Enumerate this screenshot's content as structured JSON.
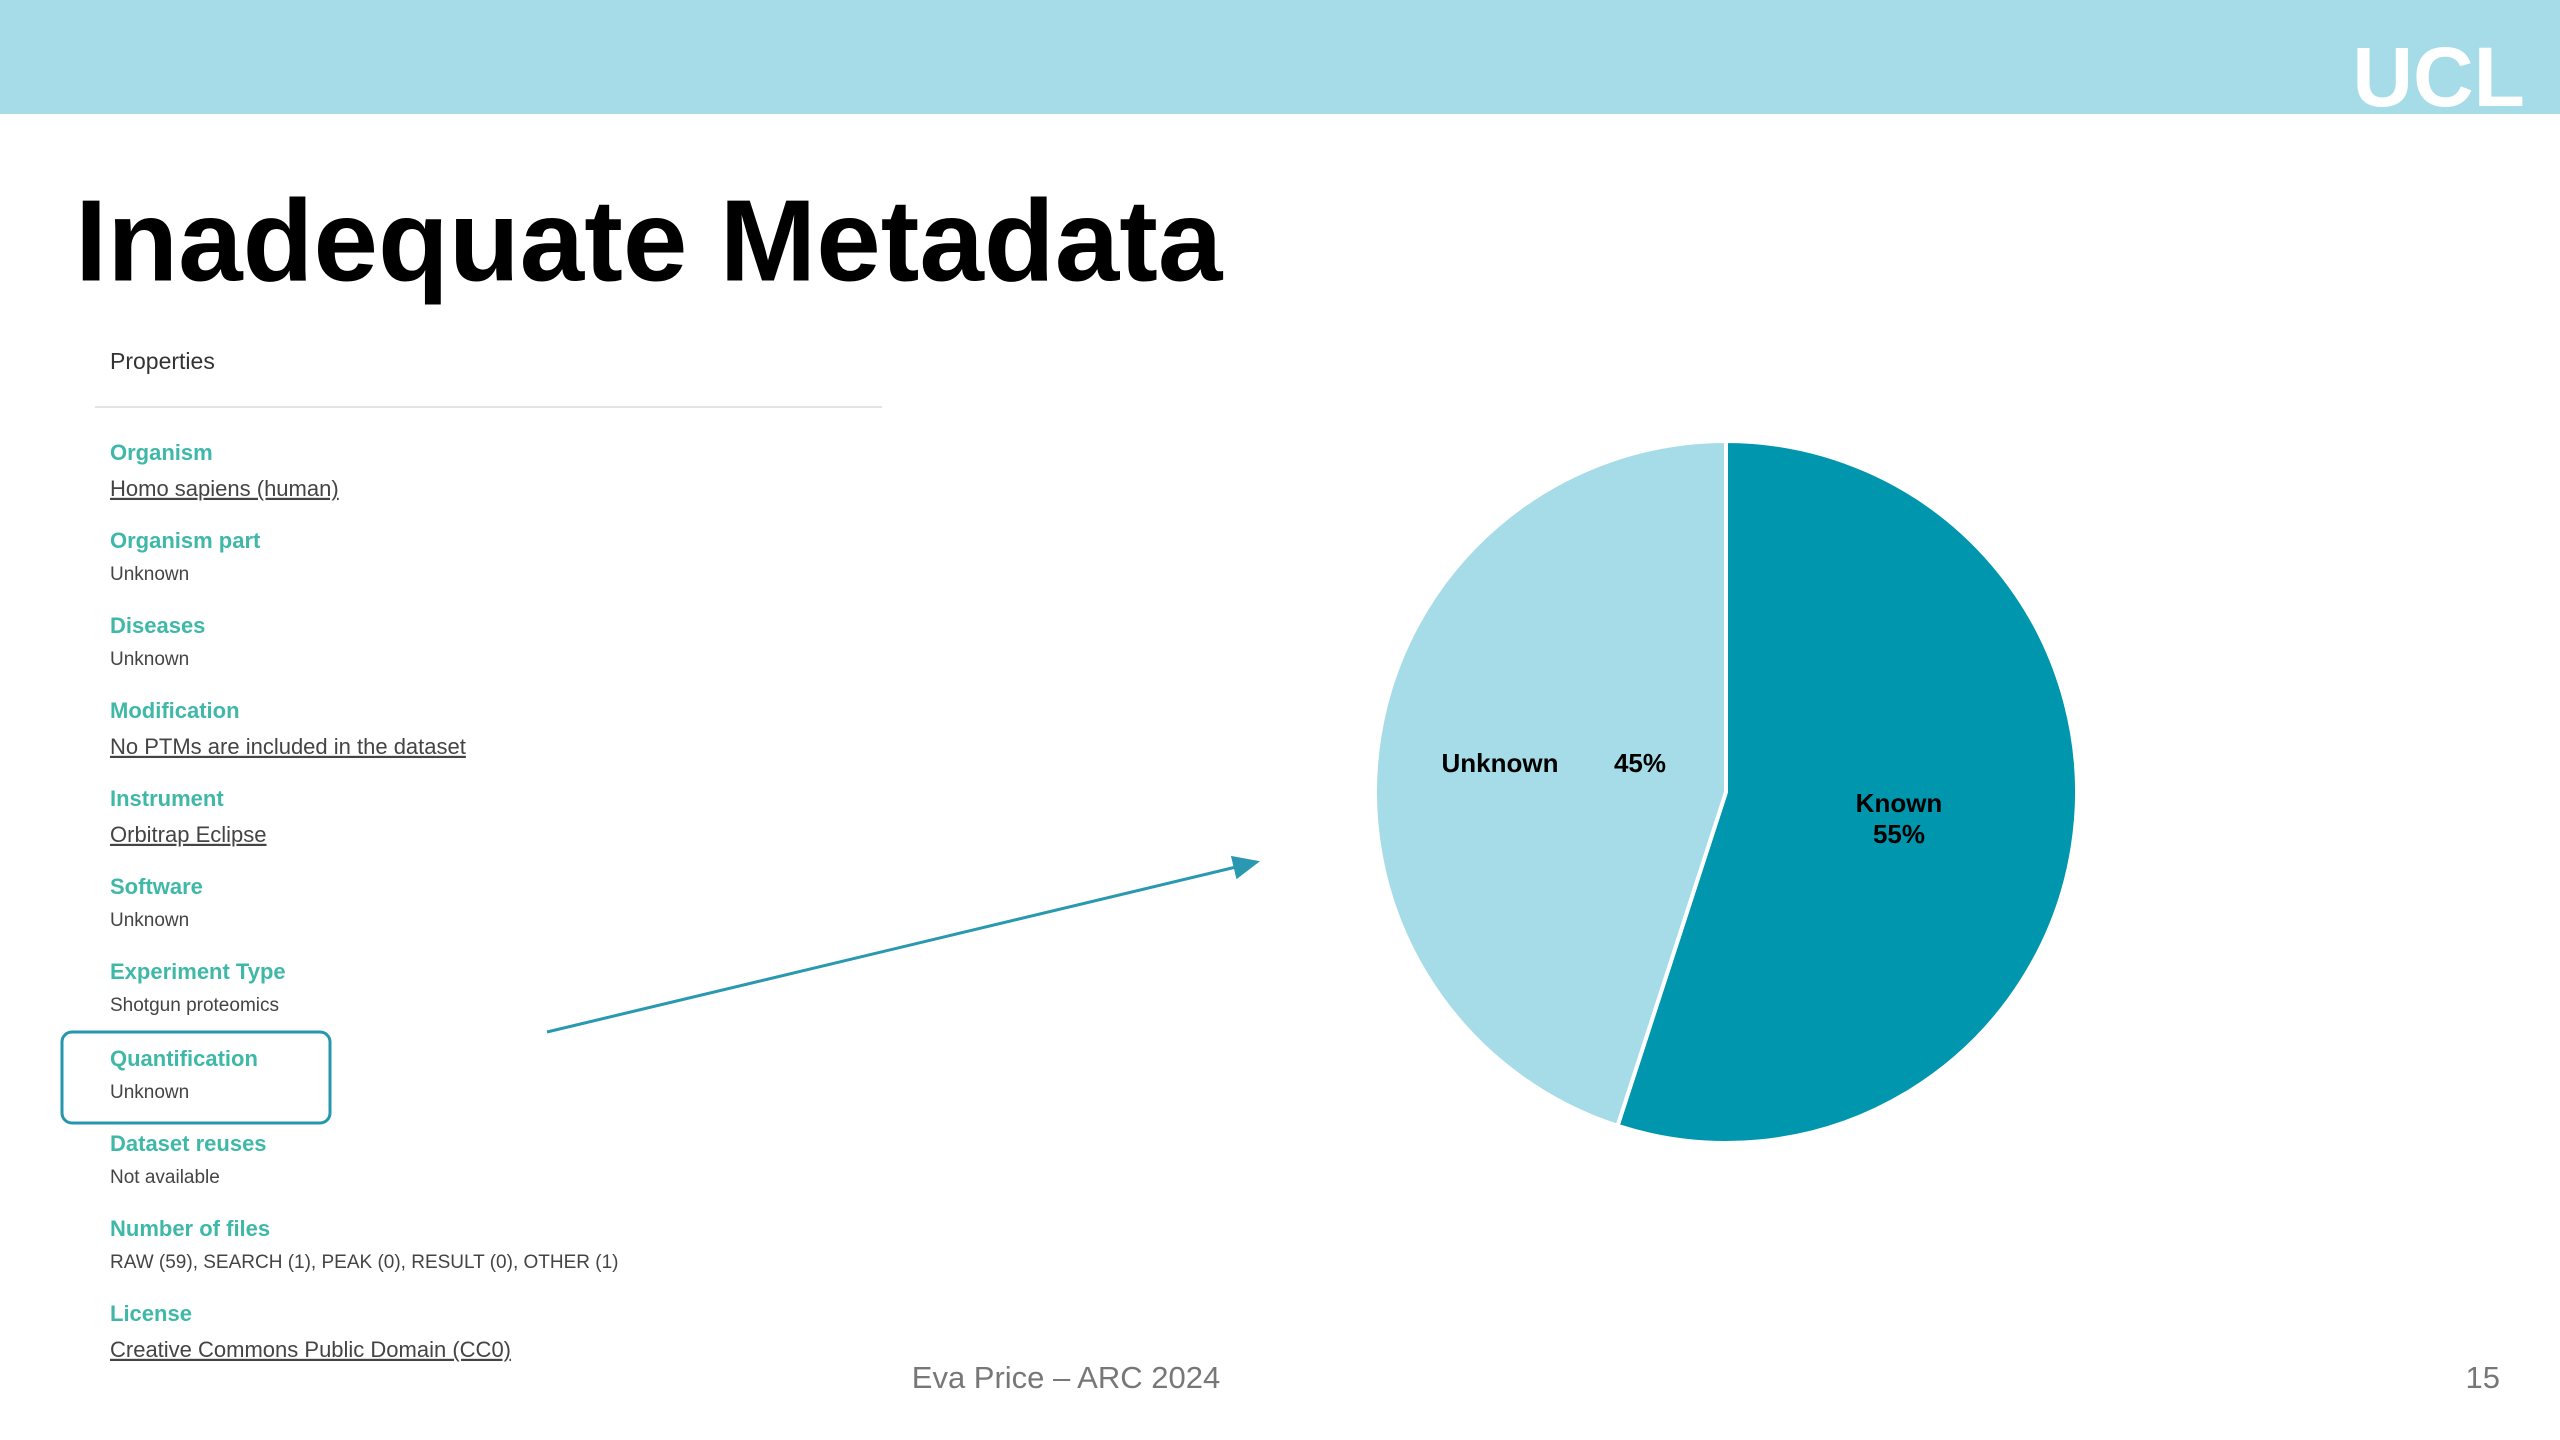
{
  "slide": {
    "logo": "UCL",
    "title": "Inadequate Metadata",
    "panel_title": "Properties",
    "properties": [
      {
        "label": "Organism",
        "value": "Homo sapiens (human)"
      },
      {
        "label": "Organism part",
        "value": "Unknown"
      },
      {
        "label": "Diseases",
        "value": "Unknown"
      },
      {
        "label": "Modification",
        "value": "No PTMs are included in the dataset"
      },
      {
        "label": "Instrument",
        "value": "Orbitrap Eclipse"
      },
      {
        "label": "Software",
        "value": "Unknown"
      },
      {
        "label": "Experiment Type",
        "value": "Shotgun proteomics"
      },
      {
        "label": "Quantification",
        "value": "Unknown"
      },
      {
        "label": "Dataset reuses",
        "value": "Not available"
      },
      {
        "label": "Number of files",
        "value": "RAW (59), SEARCH (1), PEAK (0), RESULT (0), OTHER (1)"
      },
      {
        "label": "License",
        "value": "Creative Commons Public Domain (CC0)"
      }
    ],
    "footer": "Eva Price – ARC 2024",
    "page_number": "15"
  },
  "chart_data": {
    "type": "pie",
    "categories": [
      "Known",
      "Unknown"
    ],
    "values": [
      55,
      45
    ],
    "value_labels": [
      "55%",
      "45%"
    ],
    "colors": [
      "#0096ad",
      "#a5dce8"
    ]
  }
}
